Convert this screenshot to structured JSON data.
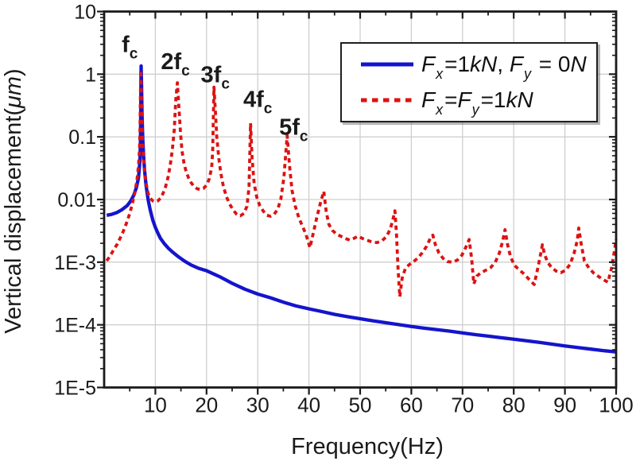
{
  "chart_data": {
    "type": "line",
    "title": "",
    "xlabel": "Frequency(Hz)",
    "ylabel": "Vertical displacement(μm)",
    "ylabel_parts": [
      [
        "n",
        "Vertical displacement("
      ],
      [
        "i",
        "μm"
      ],
      [
        "n",
        ")"
      ]
    ],
    "background": "#ffffff",
    "axis_color": "#1a1a1a",
    "grid": {
      "show": true,
      "color": "#cfcfcf"
    },
    "x_axis": {
      "scale": "linear",
      "min": 0,
      "max": 100,
      "major_ticks": [
        10,
        20,
        30,
        40,
        50,
        60,
        70,
        80,
        90,
        100
      ],
      "major_tick_labels": [
        "10",
        "20",
        "30",
        "40",
        "50",
        "60",
        "70",
        "80",
        "90",
        "100"
      ],
      "minor_ticks": [
        5,
        15,
        25,
        35,
        45,
        55,
        65,
        75,
        85,
        95
      ]
    },
    "y_axis": {
      "scale": "log",
      "min": 1e-05,
      "max": 10,
      "major_ticks": [
        10,
        1,
        0.1,
        0.01,
        0.001,
        0.0001,
        1e-05
      ],
      "major_tick_labels": [
        "10",
        "1",
        "0.1",
        "0.01",
        "1E-3",
        "1E-4",
        "1E-5"
      ],
      "grid_values": [
        1,
        0.1,
        0.01,
        0.001,
        0.0001
      ]
    },
    "series": [
      {
        "name": "Fx=1kN, Fy=0N",
        "color": "#1414cd",
        "line_style": "solid",
        "line_width": 4.3,
        "points": [
          [
            0.5,
            0.0056
          ],
          [
            1.5,
            0.0058
          ],
          [
            2.5,
            0.0062
          ],
          [
            3.5,
            0.0069
          ],
          [
            4.5,
            0.008
          ],
          [
            5.2,
            0.0095
          ],
          [
            5.8,
            0.0118
          ],
          [
            6.3,
            0.0155
          ],
          [
            6.7,
            0.022
          ],
          [
            7.0,
            0.042
          ],
          [
            7.1,
            0.09
          ],
          [
            7.17,
            0.35
          ],
          [
            7.22,
            1.35
          ],
          [
            7.3,
            0.7
          ],
          [
            7.4,
            0.22
          ],
          [
            7.55,
            0.09
          ],
          [
            7.7,
            0.05
          ],
          [
            7.9,
            0.029
          ],
          [
            8.2,
            0.0165
          ],
          [
            8.6,
            0.0098
          ],
          [
            9,
            0.0068
          ],
          [
            9.5,
            0.0047
          ],
          [
            10,
            0.0036
          ],
          [
            10.5,
            0.0029
          ],
          [
            11,
            0.0024
          ],
          [
            11.8,
            0.00195
          ],
          [
            12.6,
            0.00165
          ],
          [
            13.5,
            0.00142
          ],
          [
            14.5,
            0.00122
          ],
          [
            15.7,
            0.00104
          ],
          [
            17,
            0.0009
          ],
          [
            18.4,
            0.0008
          ],
          [
            20,
            0.00073
          ],
          [
            22.5,
            0.00059
          ],
          [
            25,
            0.00046
          ],
          [
            27.5,
            0.00037
          ],
          [
            30,
            0.00031
          ],
          [
            32.5,
            0.00027
          ],
          [
            35,
            0.00023
          ],
          [
            37.5,
            0.0002
          ],
          [
            40,
            0.00018
          ],
          [
            42.5,
            0.000163
          ],
          [
            45,
            0.000147
          ],
          [
            47.5,
            0.000135
          ],
          [
            50,
            0.000125
          ],
          [
            52.5,
            0.000116
          ],
          [
            55,
            0.000108
          ],
          [
            57.5,
            0.000101
          ],
          [
            60,
            9.4e-05
          ],
          [
            62.5,
            8.85e-05
          ],
          [
            65,
            8.38e-05
          ],
          [
            67.5,
            7.92e-05
          ],
          [
            70,
            7.42e-05
          ],
          [
            72.5,
            6.98e-05
          ],
          [
            75,
            6.6e-05
          ],
          [
            77.5,
            6.23e-05
          ],
          [
            80,
            5.9e-05
          ],
          [
            82.5,
            5.57e-05
          ],
          [
            85,
            5.24e-05
          ],
          [
            87.5,
            4.92e-05
          ],
          [
            90,
            4.6e-05
          ],
          [
            92.5,
            4.34e-05
          ],
          [
            95,
            4.1e-05
          ],
          [
            97.5,
            3.87e-05
          ],
          [
            100,
            3.7e-05
          ]
        ]
      },
      {
        "name": "Fx=Fy=1kN",
        "color": "#dd1212",
        "line_style": "dashed",
        "dash": "5.5 4.5",
        "line_width": 3.8,
        "points": [
          [
            0.5,
            0.00105
          ],
          [
            1,
            0.0012
          ],
          [
            1.5,
            0.0014
          ],
          [
            2,
            0.00165
          ],
          [
            2.5,
            0.0019
          ],
          [
            3,
            0.0023
          ],
          [
            3.5,
            0.0028
          ],
          [
            4,
            0.0035
          ],
          [
            4.5,
            0.0045
          ],
          [
            5,
            0.006
          ],
          [
            5.5,
            0.0085
          ],
          [
            6,
            0.013
          ],
          [
            6.4,
            0.02
          ],
          [
            6.7,
            0.034
          ],
          [
            6.9,
            0.06
          ],
          [
            7.0,
            0.12
          ],
          [
            7.08,
            0.4
          ],
          [
            7.15,
            1.15
          ],
          [
            7.25,
            0.55
          ],
          [
            7.35,
            0.18
          ],
          [
            7.5,
            0.08
          ],
          [
            7.7,
            0.045
          ],
          [
            7.9,
            0.028
          ],
          [
            8.2,
            0.018
          ],
          [
            8.6,
            0.0125
          ],
          [
            9,
            0.0105
          ],
          [
            9.5,
            0.0095
          ],
          [
            10,
            0.0092
          ],
          [
            10.5,
            0.0095
          ],
          [
            11,
            0.0105
          ],
          [
            11.5,
            0.0125
          ],
          [
            12,
            0.016
          ],
          [
            12.5,
            0.023
          ],
          [
            12.9,
            0.035
          ],
          [
            13.3,
            0.06
          ],
          [
            13.7,
            0.13
          ],
          [
            14.0,
            0.4
          ],
          [
            14.3,
            0.73
          ],
          [
            14.6,
            0.3
          ],
          [
            14.9,
            0.12
          ],
          [
            15.2,
            0.06
          ],
          [
            15.6,
            0.038
          ],
          [
            16,
            0.028
          ],
          [
            16.5,
            0.022
          ],
          [
            17,
            0.0185
          ],
          [
            17.6,
            0.016
          ],
          [
            18.2,
            0.0148
          ],
          [
            18.8,
            0.0145
          ],
          [
            19.4,
            0.015
          ],
          [
            20,
            0.017
          ],
          [
            20.5,
            0.021
          ],
          [
            21,
            0.032
          ],
          [
            21.2,
            0.06
          ],
          [
            21.45,
            0.62
          ],
          [
            21.7,
            0.28
          ],
          [
            22,
            0.1
          ],
          [
            22.4,
            0.045
          ],
          [
            22.8,
            0.026
          ],
          [
            23.3,
            0.016
          ],
          [
            23.9,
            0.011
          ],
          [
            24.5,
            0.0085
          ],
          [
            25.2,
            0.0068
          ],
          [
            25.9,
            0.0058
          ],
          [
            26.6,
            0.0055
          ],
          [
            27.3,
            0.006
          ],
          [
            27.9,
            0.0078
          ],
          [
            28.3,
            0.016
          ],
          [
            28.6,
            0.165
          ],
          [
            28.9,
            0.045
          ],
          [
            29.3,
            0.018
          ],
          [
            29.8,
            0.011
          ],
          [
            30.4,
            0.008
          ],
          [
            31.1,
            0.0065
          ],
          [
            31.8,
            0.0056
          ],
          [
            32.5,
            0.0054
          ],
          [
            33.2,
            0.0058
          ],
          [
            33.9,
            0.007
          ],
          [
            34.5,
            0.01
          ],
          [
            35.1,
            0.022
          ],
          [
            35.75,
            0.105
          ],
          [
            36.2,
            0.035
          ],
          [
            36.7,
            0.014
          ],
          [
            37.3,
            0.008
          ],
          [
            38,
            0.0052
          ],
          [
            38.7,
            0.0038
          ],
          [
            39.4,
            0.0028
          ],
          [
            40.2,
            0.0017
          ],
          [
            40.8,
            0.0028
          ],
          [
            41.5,
            0.005
          ],
          [
            42.2,
            0.0085
          ],
          [
            42.9,
            0.0135
          ],
          [
            43.4,
            0.0062
          ],
          [
            43.9,
            0.004
          ],
          [
            44.6,
            0.0032
          ],
          [
            45.4,
            0.0028
          ],
          [
            46.2,
            0.0026
          ],
          [
            47,
            0.0024
          ],
          [
            48,
            0.00225
          ],
          [
            48.8,
            0.0024
          ],
          [
            49.6,
            0.0026
          ],
          [
            50.4,
            0.0024
          ],
          [
            51.3,
            0.00225
          ],
          [
            52.3,
            0.0021
          ],
          [
            53.3,
            0.00205
          ],
          [
            54.3,
            0.0022
          ],
          [
            55.2,
            0.0026
          ],
          [
            55.9,
            0.0034
          ],
          [
            56.4,
            0.0048
          ],
          [
            56.8,
            0.0066
          ],
          [
            57.1,
            0.0028
          ],
          [
            57.4,
            0.0008
          ],
          [
            57.75,
            0.00028
          ],
          [
            58.2,
            0.00055
          ],
          [
            58.8,
            0.00078
          ],
          [
            59.5,
            0.0009
          ],
          [
            60.3,
            0.001
          ],
          [
            61.2,
            0.00115
          ],
          [
            62.1,
            0.0014
          ],
          [
            63,
            0.0018
          ],
          [
            63.7,
            0.0024
          ],
          [
            64.2,
            0.0027
          ],
          [
            64.7,
            0.0019
          ],
          [
            65.4,
            0.0014
          ],
          [
            66.2,
            0.00115
          ],
          [
            67.1,
            0.00102
          ],
          [
            68.1,
            0.001
          ],
          [
            69,
            0.00108
          ],
          [
            69.9,
            0.0013
          ],
          [
            70.6,
            0.0017
          ],
          [
            71.3,
            0.0023
          ],
          [
            71.8,
            0.0011
          ],
          [
            72.2,
            0.00045
          ],
          [
            72.8,
            0.0006
          ],
          [
            73.6,
            0.00068
          ],
          [
            74.5,
            0.00074
          ],
          [
            75.5,
            0.00082
          ],
          [
            76.4,
            0.001
          ],
          [
            77.2,
            0.0014
          ],
          [
            77.8,
            0.0021
          ],
          [
            78.3,
            0.0033
          ],
          [
            78.8,
            0.0019
          ],
          [
            79.4,
            0.0012
          ],
          [
            80.2,
            0.00088
          ],
          [
            81.1,
            0.00075
          ],
          [
            82.1,
            0.00064
          ],
          [
            83.1,
            0.00052
          ],
          [
            84,
            0.00044
          ],
          [
            84.7,
            0.0008
          ],
          [
            85.3,
            0.0014
          ],
          [
            85.6,
            0.0019
          ],
          [
            86,
            0.00135
          ],
          [
            86.6,
            0.001
          ],
          [
            87.4,
            0.00082
          ],
          [
            88.3,
            0.00072
          ],
          [
            89.2,
            0.00068
          ],
          [
            90.1,
            0.00074
          ],
          [
            91,
            0.00092
          ],
          [
            91.8,
            0.0014
          ],
          [
            92.4,
            0.0022
          ],
          [
            92.7,
            0.0035
          ],
          [
            93.2,
            0.0019
          ],
          [
            93.8,
            0.00105
          ],
          [
            94.7,
            0.0008
          ],
          [
            95.7,
            0.00066
          ],
          [
            96.7,
            0.00058
          ],
          [
            97.6,
            0.00052
          ],
          [
            98.4,
            0.00048
          ],
          [
            99.1,
            0.0008
          ],
          [
            99.6,
            0.0014
          ],
          [
            100,
            0.0023
          ]
        ]
      }
    ],
    "peak_labels": [
      {
        "main": "f",
        "sub": "c",
        "x_hz": 5.0,
        "y_um": 3.0
      },
      {
        "main": "2f",
        "sub": "c",
        "x_hz": 13.9,
        "y_um": 1.6
      },
      {
        "main": "3f",
        "sub": "c",
        "x_hz": 21.7,
        "y_um": 1.0
      },
      {
        "main": "4f",
        "sub": "c",
        "x_hz": 30.0,
        "y_um": 0.4
      },
      {
        "main": "5f",
        "sub": "c",
        "x_hz": 37.0,
        "y_um": 0.145
      }
    ],
    "legend": {
      "position": "top-right",
      "items": [
        {
          "swatch": "solid",
          "color": "#1414cd",
          "label_plain": "Fx=1kN, Fy= 0N",
          "label_parts": [
            [
              "i",
              "F"
            ],
            [
              "sub",
              "x"
            ],
            [
              "n",
              "=1"
            ],
            [
              "i",
              "kN"
            ],
            [
              "n",
              ", "
            ],
            [
              "i",
              "F"
            ],
            [
              "sub",
              "y"
            ],
            [
              "n",
              " = 0"
            ],
            [
              "i",
              "N"
            ]
          ]
        },
        {
          "swatch": "dashed",
          "color": "#dd1212",
          "label_plain": "Fx=Fy=1kN",
          "label_parts": [
            [
              "i",
              "F"
            ],
            [
              "sub",
              "x"
            ],
            [
              "n",
              "="
            ],
            [
              "i",
              "F"
            ],
            [
              "sub",
              "y"
            ],
            [
              "n",
              "=1"
            ],
            [
              "i",
              "kN"
            ]
          ]
        }
      ]
    }
  }
}
